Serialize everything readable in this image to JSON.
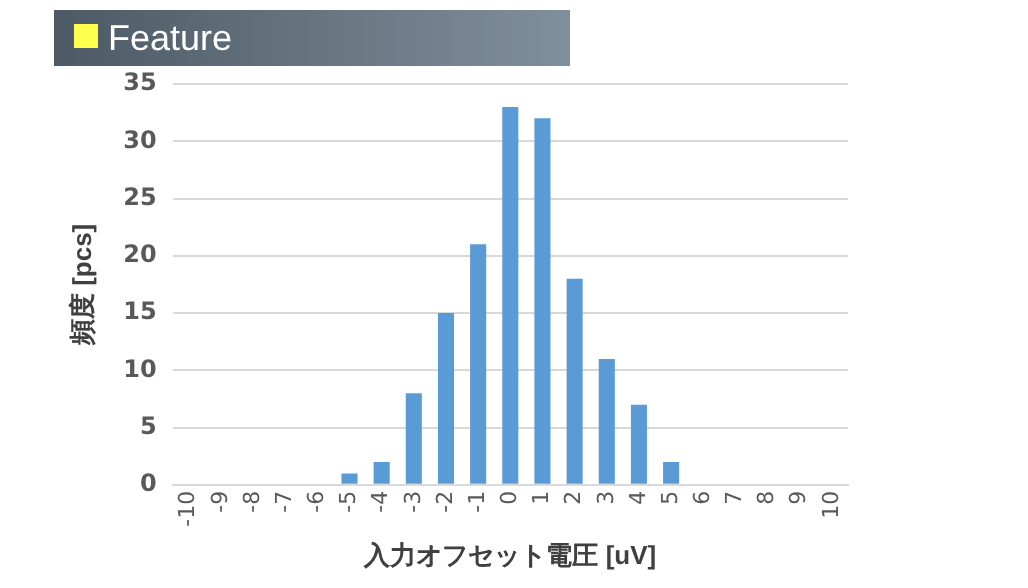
{
  "chart_data": {
    "type": "bar",
    "title": "Feature",
    "xlabel": "入力オフセット電圧 [uV]",
    "ylabel": "頻度 [pcs]",
    "categories": [
      "-10",
      "-9",
      "-8",
      "-7",
      "-6",
      "-5",
      "-4",
      "-3",
      "-2",
      "-1",
      "0",
      "1",
      "2",
      "3",
      "4",
      "5",
      "6",
      "7",
      "8",
      "9",
      "10"
    ],
    "values": [
      0,
      0,
      0,
      0,
      0,
      1,
      2,
      8,
      15,
      21,
      33,
      32,
      18,
      11,
      7,
      2,
      0,
      0,
      0,
      0,
      0
    ],
    "color": "#5b9bd5",
    "ylim": [
      0,
      35
    ],
    "yticks": [
      0,
      5,
      10,
      15,
      20,
      25,
      30,
      35
    ],
    "grid": "y",
    "legend": false
  }
}
